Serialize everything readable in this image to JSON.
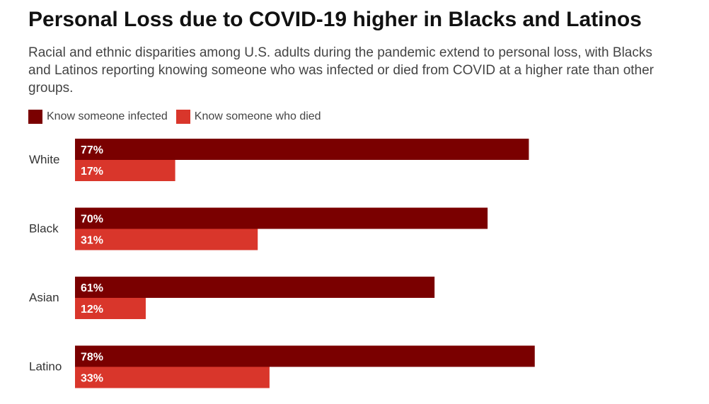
{
  "chart_data": {
    "type": "bar",
    "orientation": "horizontal",
    "title": "Personal Loss due to COVID-19 higher in Blacks and Latinos",
    "subtitle": "Racial and ethnic disparities among U.S. adults during the pandemic extend to personal loss, with Blacks and Latinos reporting knowing someone who was infected or died from COVID at a higher rate than other groups.",
    "categories": [
      "White",
      "Black",
      "Asian",
      "Latino"
    ],
    "series": [
      {
        "name": "Know someone infected",
        "color": "#7a0000",
        "values": [
          77,
          70,
          61,
          78
        ],
        "labels": [
          "77%",
          "70%",
          "61%",
          "78%"
        ]
      },
      {
        "name": "Know someone who died",
        "color": "#d9362b",
        "values": [
          17,
          31,
          12,
          33
        ],
        "labels": [
          "17%",
          "31%",
          "12%",
          "33%"
        ]
      }
    ],
    "xlim": [
      0,
      100
    ],
    "grid": false,
    "legend_position": "top-left"
  }
}
